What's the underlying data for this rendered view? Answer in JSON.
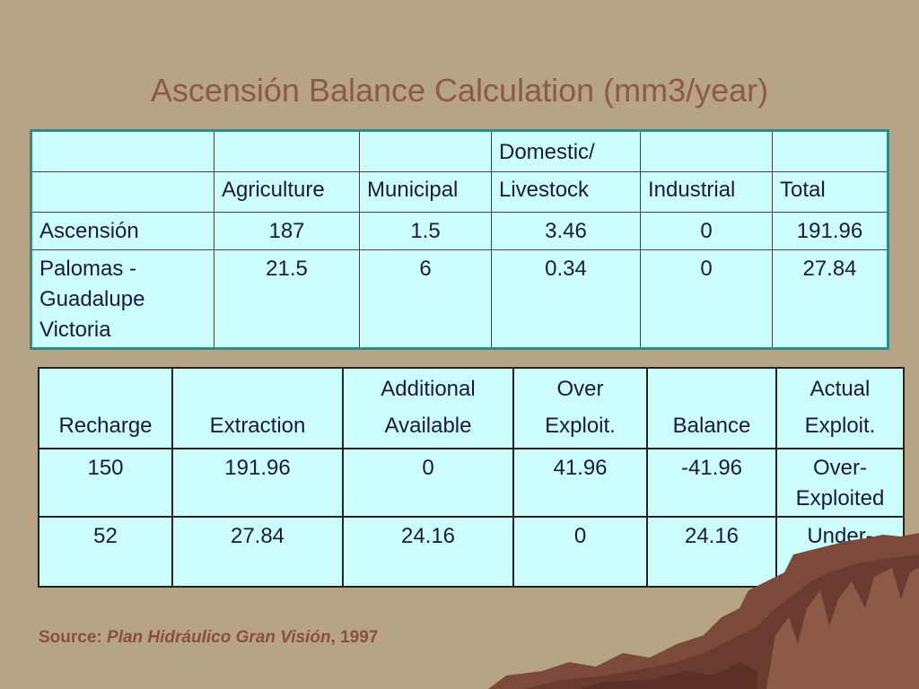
{
  "title": "Ascensión Balance Calculation (mm3/year)",
  "table1": {
    "header_top": [
      "",
      "",
      "",
      "Domestic/",
      "",
      ""
    ],
    "header_bottom": [
      "",
      "Agriculture",
      "Municipal",
      "Livestock",
      "Industrial",
      "Total"
    ],
    "rows": [
      [
        "Ascensión",
        "187",
        "1.5",
        "3.46",
        "0",
        "191.96"
      ],
      [
        "Palomas - Guadalupe Victoria",
        "21.5",
        "6",
        "0.34",
        "0",
        "27.84"
      ]
    ]
  },
  "table2": {
    "header_top": [
      "",
      "",
      "Additional",
      "Over",
      "",
      "Actual"
    ],
    "header_bottom": [
      "Recharge",
      "Extraction",
      "Available",
      "Exploit.",
      "Balance",
      "Exploit."
    ],
    "rows": [
      [
        "150",
        "191.96",
        "0",
        "41.96",
        "-41.96",
        "Over-Exploited"
      ],
      [
        "52",
        "27.84",
        "24.16",
        "0",
        "24.16",
        "Under-Exploited"
      ]
    ]
  },
  "source": {
    "label": "Source:",
    "work": "Plan Hidráulico Gran Visión",
    "year": ", 1997"
  },
  "colors": {
    "background": "#b7a484",
    "title": "#8b5a4a",
    "table_fill": "#ccfefe",
    "table1_border": "#2d8c86",
    "source": "#8b4e44"
  }
}
